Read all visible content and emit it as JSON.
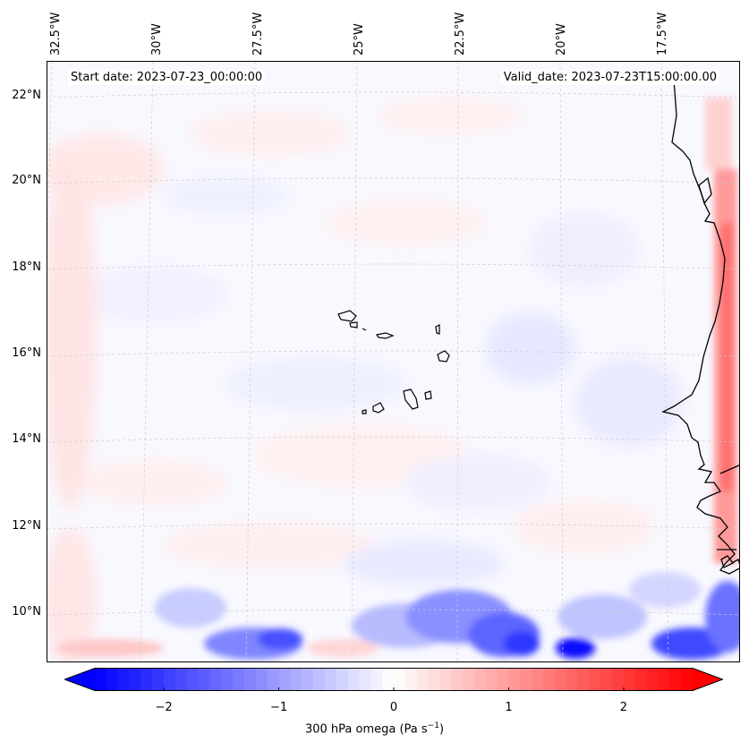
{
  "map": {
    "start_date": "Start date: 2023-07-23_00:00:00",
    "valid_date": "Valid_date: 2023-07-23T15:00:00.00",
    "lon_labels": [
      "32.5°W",
      "30°W",
      "27.5°W",
      "25°W",
      "22.5°W",
      "20°W",
      "17.5°W"
    ],
    "lat_labels": [
      "22°N",
      "20°N",
      "18°N",
      "16°N",
      "14°N",
      "12°N",
      "10°N"
    ],
    "coastline_color": "#000000",
    "gridline_color": "#cccccc"
  },
  "colorbar": {
    "ticks": [
      "−2",
      "−1",
      "0",
      "1",
      "2"
    ],
    "label_main": "300 hPa omega (Pa s",
    "label_exp": "−1",
    "label_end": ")",
    "min": -2.6,
    "max": 2.6,
    "colormap": "bwr",
    "extend": "both"
  }
}
